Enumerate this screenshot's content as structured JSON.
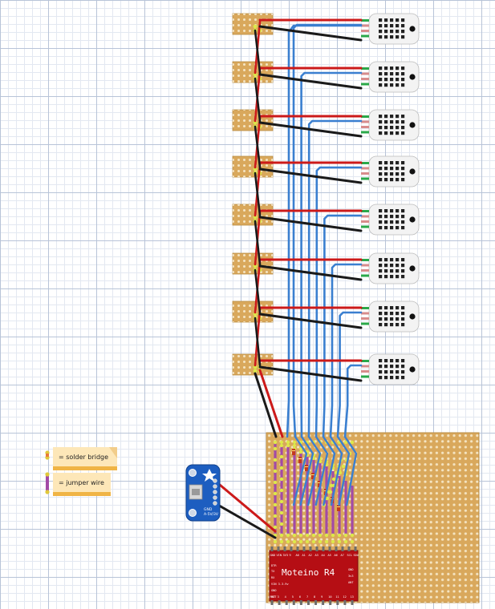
{
  "legend": {
    "solder_bridge": "= solder bridge",
    "jumper_wire": "= jumper wire"
  },
  "moteino": {
    "title": "Moteino R4",
    "top_pins": [
      "GND",
      "VIN",
      "3V3",
      "9",
      "A0",
      "A1",
      "A2",
      "A3",
      "A4",
      "A5",
      "A6",
      "A7",
      "SCL",
      "SDA"
    ],
    "bottom_pins": [
      "RST",
      "3",
      "4",
      "5",
      "6",
      "7",
      "8",
      "9",
      "10",
      "11",
      "12",
      "13"
    ],
    "left_labels": [
      "DTR",
      "TX",
      "RX",
      "VIN 3.3-9v",
      "GND",
      "RST"
    ],
    "right_labels": [
      "GND",
      "3v3",
      "ANT"
    ]
  },
  "usb_board": {
    "label_1": "GND",
    "label_2": "5V",
    "label_3": "A-5V/3V",
    "pin_labels": [
      "GND",
      "5V",
      "D-",
      "D+",
      "ID"
    ]
  },
  "sensors": {
    "count": 8,
    "model_icon": "dht22-sensor-icon"
  },
  "colors": {
    "grid_major": "#b8c4d8",
    "grid_minor": "#e3e8f1",
    "stripboard": "#d9a85c",
    "hole": "#f4e4c2",
    "wire_red": "#cc1a1a",
    "wire_black": "#1a1a1a",
    "wire_blue": "#3a7fd0",
    "jumper": "#a24aa6",
    "solder_bridge": "#dde84a",
    "moteino_red": "#b50e14",
    "usb_blue": "#1d5ec0",
    "sensor_body": "#f3f3f3"
  }
}
